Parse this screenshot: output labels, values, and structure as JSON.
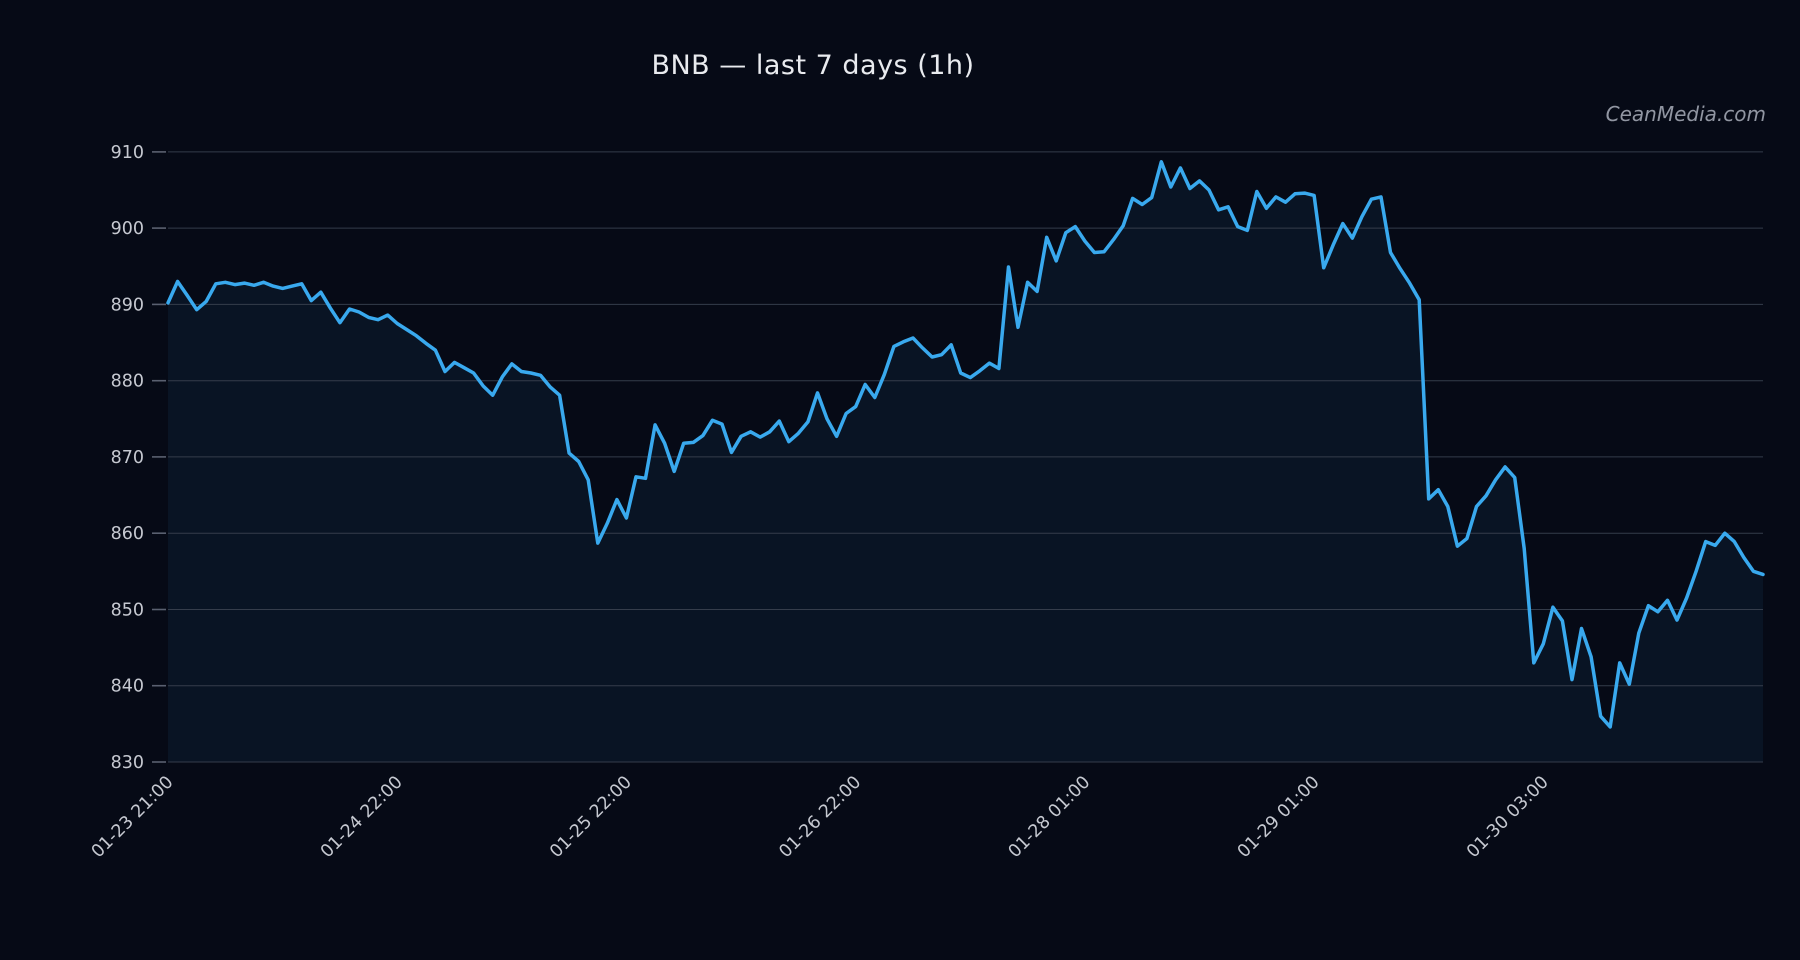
{
  "title": "BNB — last 7 days (1h)",
  "watermark": "CeanMedia.com",
  "colors": {
    "background": "#060a16",
    "line": "#39a9ee",
    "fill": "rgba(57,169,238,0.065)",
    "grid": "#3a4250",
    "tick_dash": "#5a6070",
    "tick_label": "#c6c9d1",
    "title_text": "#e9ebef",
    "watermark_text": "#9196a2"
  },
  "chart_data": {
    "type": "line",
    "title": "BNB — last 7 days (1h)",
    "series_name": "BNB price",
    "grid": "horizontal gridlines on, no legend",
    "legend": "none",
    "ylim": [
      830,
      913
    ],
    "y_ticks": [
      830,
      840,
      850,
      860,
      870,
      880,
      890,
      900,
      910
    ],
    "x_tick_labels": [
      "01-23 21:00",
      "01-24 22:00",
      "01-25 22:00",
      "01-26 22:00",
      "01-28 01:00",
      "01-29 01:00",
      "01-30 03:00"
    ],
    "x_tick_indices": [
      0,
      24,
      48,
      72,
      96,
      120,
      144
    ],
    "n_points": 168,
    "values": [
      890.2,
      893.0,
      891.2,
      889.3,
      890.4,
      892.7,
      892.9,
      892.6,
      892.8,
      892.5,
      892.9,
      892.4,
      892.1,
      892.4,
      892.7,
      890.5,
      891.6,
      889.5,
      887.6,
      889.4,
      889.0,
      888.3,
      888.0,
      888.6,
      887.5,
      886.7,
      885.9,
      884.9,
      884.0,
      881.2,
      882.4,
      881.7,
      881.0,
      879.3,
      878.1,
      880.5,
      882.2,
      881.2,
      881.0,
      880.7,
      879.2,
      878.1,
      870.5,
      869.4,
      867.0,
      858.7,
      861.3,
      864.4,
      862.0,
      867.4,
      867.2,
      874.2,
      871.8,
      868.1,
      871.8,
      871.9,
      872.8,
      874.8,
      874.3,
      870.6,
      872.7,
      873.3,
      872.6,
      873.3,
      874.7,
      872.0,
      873.1,
      874.6,
      878.4,
      875.0,
      872.7,
      875.7,
      876.6,
      879.5,
      877.8,
      880.8,
      884.5,
      885.1,
      885.6,
      884.3,
      883.1,
      883.4,
      884.7,
      881.0,
      880.4,
      881.3,
      882.3,
      881.6,
      894.9,
      887.0,
      892.9,
      891.7,
      898.8,
      895.7,
      899.4,
      900.2,
      898.3,
      896.8,
      896.9,
      898.5,
      900.3,
      903.9,
      903.1,
      904.0,
      908.7,
      905.4,
      907.9,
      905.2,
      906.2,
      905.0,
      902.4,
      902.8,
      900.2,
      899.7,
      904.8,
      902.6,
      904.1,
      903.4,
      904.5,
      904.6,
      904.3,
      894.8,
      897.8,
      900.6,
      898.7,
      901.5,
      903.8,
      904.1,
      896.8,
      894.7,
      892.8,
      890.6,
      864.5,
      865.7,
      863.5,
      858.3,
      859.3,
      863.5,
      864.9,
      867.0,
      868.7,
      867.3,
      858.0,
      843.0,
      845.5,
      850.3,
      848.5,
      840.8,
      847.5,
      843.8,
      836.0,
      834.6,
      843.0,
      840.2,
      846.9,
      850.5,
      849.7,
      851.2,
      848.6,
      851.5,
      855.0,
      858.9,
      858.4,
      860.0,
      858.9,
      856.8,
      855.0,
      854.6
    ]
  }
}
